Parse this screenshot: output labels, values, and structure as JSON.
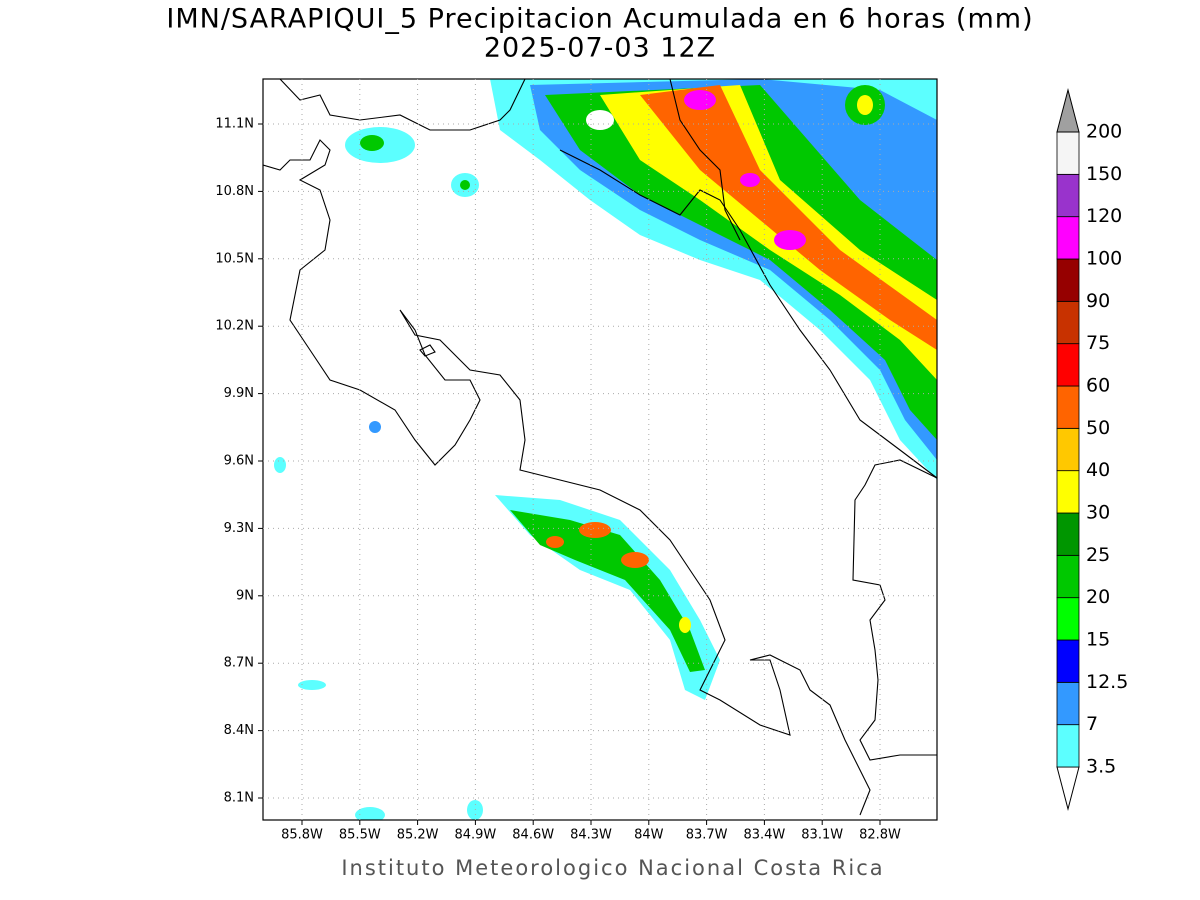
{
  "title": "IMN/SARAPIQUI_5 Precipitacion Acumulada en 6 horas (mm)",
  "subtitle": "2025-07-03 12Z",
  "map": {
    "lat_ticks": [
      "11.1N",
      "10.8N",
      "10.5N",
      "10.2N",
      "9.9N",
      "9.6N",
      "9.3N",
      "9N",
      "8.7N",
      "8.4N",
      "8.1N"
    ],
    "lon_ticks": [
      "85.8W",
      "85.5W",
      "85.2W",
      "84.9W",
      "84.6W",
      "84.3W",
      "84W",
      "83.7W",
      "83.4W",
      "83.1W",
      "82.8W"
    ]
  },
  "colorbar": {
    "levels": [
      3.5,
      7,
      12.5,
      15,
      20,
      25,
      30,
      40,
      50,
      60,
      75,
      90,
      100,
      120,
      150,
      200
    ],
    "colors": [
      "#ffffff",
      "#5cffff",
      "#3399ff",
      "#0000ff",
      "#00ff00",
      "#00c800",
      "#009600",
      "#ffff00",
      "#ffc800",
      "#ff6400",
      "#ff0000",
      "#c83200",
      "#960000",
      "#ff00ff",
      "#9933cc",
      "#f5f5f5",
      "#a0a0a0"
    ]
  },
  "footer": "Instituto Meteorologico Nacional Costa Rica"
}
